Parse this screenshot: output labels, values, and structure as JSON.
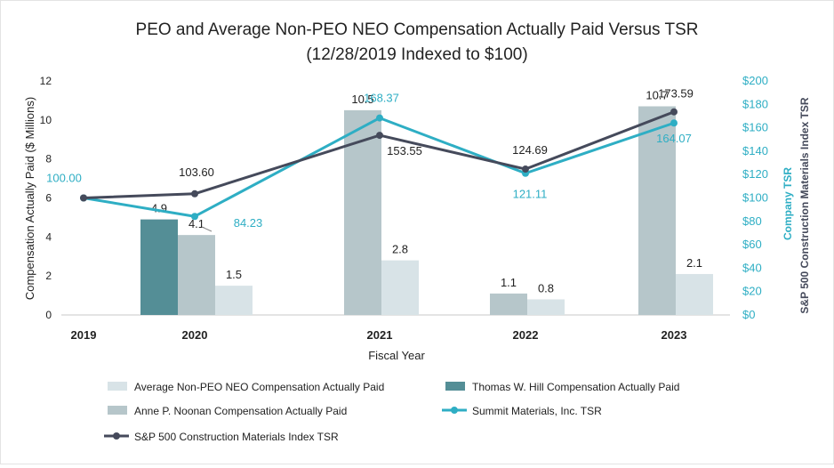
{
  "chart_data": {
    "type": "bar",
    "title_line1": "PEO and Average Non-PEO NEO Compensation Actually Paid Versus TSR",
    "title_line2": "(12/28/2019 Indexed to $100)",
    "xlabel": "Fiscal Year",
    "ylabel_left": "Compensation Actually Paid ($ Millions)",
    "ylabel_right_1": "Company TSR",
    "ylabel_right_2": "S&P 500 Construction Materials Index TSR",
    "categories": [
      "2019",
      "2020",
      "2021",
      "2022",
      "2023"
    ],
    "ylim_left": [
      0,
      12
    ],
    "yticks_left": [
      "0",
      "2",
      "4",
      "6",
      "8",
      "10",
      "12"
    ],
    "ylim_right": [
      0,
      200
    ],
    "yticks_right": [
      "$0",
      "$20",
      "$40",
      "$60",
      "$80",
      "$100",
      "$120",
      "$140",
      "$160",
      "$180",
      "$200"
    ],
    "bar_series": [
      {
        "name": "Thomas W. Hill Compensation Actually Paid",
        "color": "#548e96",
        "values": [
          null,
          4.9,
          null,
          null,
          null
        ],
        "labels": [
          null,
          "4.9",
          null,
          null,
          null
        ]
      },
      {
        "name": "Anne P. Noonan Compensation Actually Paid",
        "color": "#b6c6ca",
        "values": [
          null,
          4.1,
          10.5,
          1.1,
          10.7
        ],
        "labels": [
          null,
          "4.1",
          "10.5",
          "1.1",
          "10.7"
        ]
      },
      {
        "name": "Average Non-PEO NEO Compensation Actually Paid",
        "color": "#d8e3e7",
        "values": [
          null,
          1.5,
          2.8,
          0.8,
          2.1
        ],
        "labels": [
          null,
          "1.5",
          "2.8",
          "0.8",
          "2.1"
        ]
      }
    ],
    "line_series": [
      {
        "name": "Summit Materials, Inc. TSR",
        "color": "#2eaec4",
        "values": [
          100.0,
          84.23,
          168.37,
          121.11,
          164.07
        ],
        "labels": [
          "100.00",
          "84.23",
          "168.37",
          "121.11",
          "164.07"
        ]
      },
      {
        "name": "S&P 500 Construction Materials Index TSR",
        "color": "#454a5b",
        "values": [
          100.0,
          103.6,
          153.55,
          124.69,
          173.59
        ],
        "labels": [
          null,
          "103.60",
          "153.55",
          "124.69",
          "173.59"
        ]
      }
    ],
    "legend": [
      {
        "label": "Average Non-PEO NEO Compensation Actually Paid",
        "kind": "bar",
        "color": "#d8e3e7"
      },
      {
        "label": "Thomas W. Hill Compensation Actually Paid",
        "kind": "bar",
        "color": "#548e96"
      },
      {
        "label": "Anne P. Noonan Compensation Actually Paid",
        "kind": "bar",
        "color": "#b6c6ca"
      },
      {
        "label": "Summit Materials, Inc. TSR",
        "kind": "line",
        "color": "#2eaec4"
      },
      {
        "label": "S&P 500 Construction Materials Index TSR",
        "kind": "line",
        "color": "#454a5b"
      }
    ],
    "legend_position": "bottom"
  }
}
